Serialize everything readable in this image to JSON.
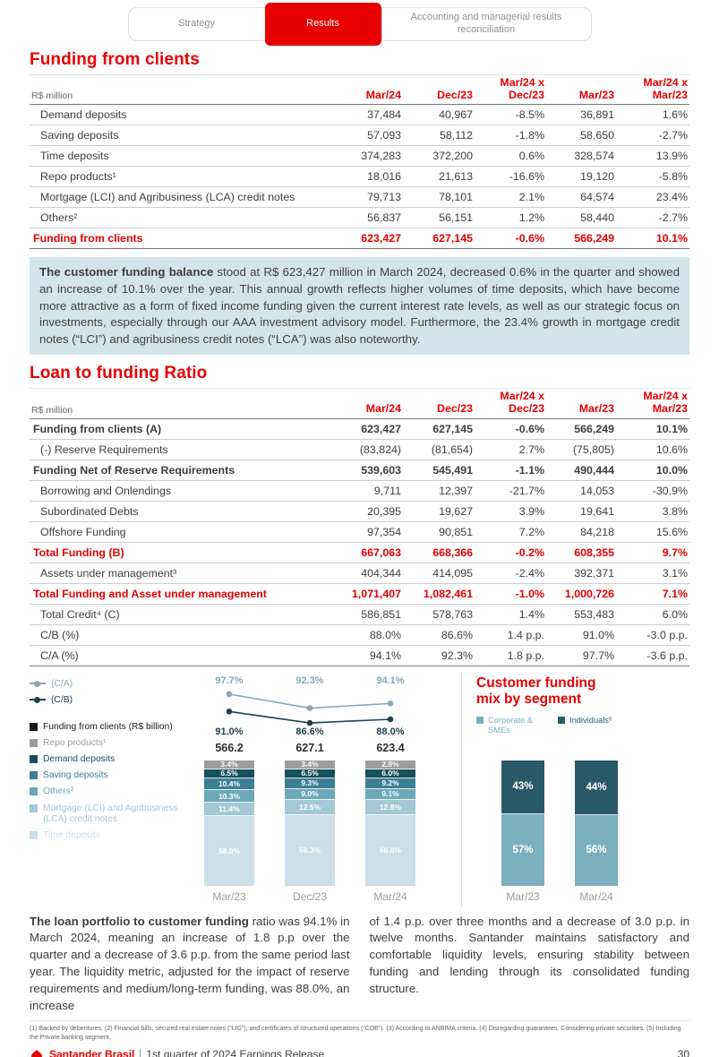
{
  "brand": {
    "red": "#e60000",
    "highlight_bg": "#d3e5ec"
  },
  "tabs": [
    {
      "label": "Strategy",
      "active": false
    },
    {
      "label": "Results",
      "active": true
    },
    {
      "label": "Accounting and managerial results reconciliation",
      "active": false
    }
  ],
  "funding_table": {
    "title": "Funding from clients",
    "unit": "R$ million",
    "headers": [
      "Mar/24",
      "Dec/23",
      "Mar/24 x Dec/23",
      "Mar/23",
      "Mar/24 x Mar/23"
    ],
    "rows": [
      {
        "label": "Demand deposits",
        "values": [
          "37,484",
          "40,967",
          "-8.5%",
          "36,891",
          "1.6%"
        ],
        "style": "normal"
      },
      {
        "label": "Saving deposits",
        "values": [
          "57,093",
          "58,112",
          "-1.8%",
          "58,650",
          "-2.7%"
        ],
        "style": "normal"
      },
      {
        "label": "Time deposits",
        "values": [
          "374,283",
          "372,200",
          "0.6%",
          "328,574",
          "13.9%"
        ],
        "style": "normal"
      },
      {
        "label": "Repo products¹",
        "values": [
          "18,016",
          "21,613",
          "-16.6%",
          "19,120",
          "-5.8%"
        ],
        "style": "normal"
      },
      {
        "label": "Mortgage (LCI) and Agribusiness (LCA) credit notes",
        "values": [
          "79,713",
          "78,101",
          "2.1%",
          "64,574",
          "23.4%"
        ],
        "style": "normal"
      },
      {
        "label": "Others²",
        "values": [
          "56,837",
          "56,151",
          "1.2%",
          "58,440",
          "-2.7%"
        ],
        "style": "normal"
      },
      {
        "label": "Funding from clients",
        "values": [
          "623,427",
          "627,145",
          "-0.6%",
          "566,249",
          "10.1%"
        ],
        "style": "total-red"
      }
    ]
  },
  "highlight": {
    "lead": "The customer funding balance",
    "text": " stood at R$ 623,427 million in March 2024, decreased 0.6% in the quarter and showed an increase of 10.1% over the year. This annual growth reflects higher volumes of time deposits, which have become more attractive as a form of fixed income funding given the current interest rate levels, as well as our strategic focus on investments, especially through our AAA investment advisory model. Furthermore, the 23.4% growth in mortgage credit notes (“LCI”) and agribusiness credit notes (“LCA”) was also noteworthy."
  },
  "ratio_table": {
    "title": "Loan to funding Ratio",
    "unit": "R$ million",
    "headers": [
      "Mar/24",
      "Dec/23",
      "Mar/24 x Dec/23",
      "Mar/23",
      "Mar/24 x Mar/23"
    ],
    "rows": [
      {
        "label": "Funding from clients (A)",
        "values": [
          "623,427",
          "627,145",
          "-0.6%",
          "566,249",
          "10.1%"
        ],
        "style": "bold"
      },
      {
        "label": "(-) Reserve Requirements",
        "values": [
          "(83,824)",
          "(81,654)",
          "2.7%",
          "(75,805)",
          "10.6%"
        ],
        "style": "normal"
      },
      {
        "label": "Funding Net of Reserve Requirements",
        "values": [
          "539,603",
          "545,491",
          "-1.1%",
          "490,444",
          "10.0%"
        ],
        "style": "bold"
      },
      {
        "label": "Borrowing and Onlendings",
        "values": [
          "9,711",
          "12,397",
          "-21.7%",
          "14,053",
          "-30.9%"
        ],
        "style": "normal"
      },
      {
        "label": "Subordinated Debts",
        "values": [
          "20,395",
          "19,627",
          "3.9%",
          "19,641",
          "3.8%"
        ],
        "style": "normal"
      },
      {
        "label": "Offshore Funding",
        "values": [
          "97,354",
          "90,851",
          "7.2%",
          "84,218",
          "15.6%"
        ],
        "style": "normal"
      },
      {
        "label": "Total Funding (B)",
        "values": [
          "667,063",
          "668,366",
          "-0.2%",
          "608,355",
          "9.7%"
        ],
        "style": "total-red"
      },
      {
        "label": "Assets under management³",
        "values": [
          "404,344",
          "414,095",
          "-2.4%",
          "392,371",
          "3.1%"
        ],
        "style": "normal"
      },
      {
        "label": "Total Funding and Asset under management",
        "values": [
          "1,071,407",
          "1,082,461",
          "-1.0%",
          "1,000,726",
          "7.1%"
        ],
        "style": "total-red"
      },
      {
        "label": "Total Credit⁴ (C)",
        "values": [
          "586,851",
          "578,763",
          "1.4%",
          "553,483",
          "6.0%"
        ],
        "style": "normal"
      },
      {
        "label": "C/B (%)",
        "values": [
          "88.0%",
          "86.6%",
          "1.4 p.p.",
          "91.0%",
          "-3.0 p.p."
        ],
        "style": "normal"
      },
      {
        "label": "C/A (%)",
        "values": [
          "94.1%",
          "92.3%",
          "1.8 p.p.",
          "97.7%",
          "-3.6 p.p."
        ],
        "style": "normal"
      }
    ]
  },
  "chart_legend": [
    {
      "label": "(C/A)",
      "color": "#8aa7b4",
      "type": "line"
    },
    {
      "label": "(C/B)",
      "color": "#1f4051",
      "type": "line"
    },
    {
      "label": "Funding from clients (R$ billion)",
      "color": "#1a1a1a",
      "type": "square"
    },
    {
      "label": "Repo products¹",
      "color": "#9c9c9b",
      "type": "square"
    },
    {
      "label": "Demand deposits",
      "color": "#15505c",
      "type": "square"
    },
    {
      "label": "Saving deposits",
      "color": "#3d7f95",
      "type": "square"
    },
    {
      "label": "Others²",
      "color": "#6ea7ba",
      "type": "square"
    },
    {
      "label": "Mortgage (LCI) and Agribusiness (LCA) credit notes",
      "color": "#a3c8d6",
      "type": "square"
    },
    {
      "label": "Time deposits",
      "color": "#cbdfe8",
      "type": "square"
    }
  ],
  "chart_data": [
    {
      "id": "funding_mix_chart",
      "type": "bar",
      "stacked": true,
      "categories": [
        "Mar/23",
        "Dec/23",
        "Mar/24"
      ],
      "totals_label": "Funding from clients (R$ billion)",
      "totals": [
        "566.2",
        "627.1",
        "623.4"
      ],
      "lines": [
        {
          "name": "(C/A)",
          "color": "#8aa7b4",
          "values": [
            97.7,
            92.3,
            94.1
          ],
          "labels": [
            "97.7%",
            "92.3%",
            "94.1%"
          ]
        },
        {
          "name": "(C/B)",
          "color": "#1f4051",
          "values": [
            91.0,
            86.6,
            88.0
          ],
          "labels": [
            "91.0%",
            "86.6%",
            "88.0%"
          ]
        }
      ],
      "series": [
        {
          "name": "Repo products¹",
          "color": "#9c9c9b",
          "values": [
            3.4,
            3.4,
            2.9
          ],
          "labels": [
            "3.4%",
            "3.4%",
            "2.9%"
          ]
        },
        {
          "name": "Demand deposits",
          "color": "#15505c",
          "values": [
            6.5,
            6.5,
            6.0
          ],
          "labels": [
            "6.5%",
            "6.5%",
            "6.0%"
          ]
        },
        {
          "name": "Saving deposits",
          "color": "#3d7f95",
          "values": [
            10.4,
            9.3,
            9.2
          ],
          "labels": [
            "10.4%",
            "9.3%",
            "9.2%"
          ]
        },
        {
          "name": "Others²",
          "color": "#6ea7ba",
          "values": [
            10.3,
            9.0,
            9.1
          ],
          "labels": [
            "10.3%",
            "9.0%",
            "9.1%"
          ]
        },
        {
          "name": "Mortgage (LCI) and Agribusiness (LCA) credit notes",
          "color": "#a3c8d6",
          "values": [
            11.4,
            12.5,
            12.8
          ],
          "labels": [
            "11.4%",
            "12.5%",
            "12.8%"
          ]
        },
        {
          "name": "Time deposits",
          "color": "#cbdfe8",
          "values": [
            58.0,
            59.3,
            60.0
          ],
          "labels": [
            "58.0%",
            "59.3%",
            "60.0%"
          ]
        }
      ],
      "ylim": [
        0,
        100
      ]
    },
    {
      "id": "segment_mix_chart",
      "type": "bar",
      "stacked": true,
      "title": "Customer funding mix by segment",
      "categories": [
        "Mar/23",
        "Mar/24"
      ],
      "legend": [
        {
          "label": "Corporate & SMEs",
          "color": "#7cb0bf"
        },
        {
          "label": "Individuals⁵",
          "color": "#2a5a68"
        }
      ],
      "series": [
        {
          "name": "Individuals⁵",
          "color": "#2a5a68",
          "values": [
            43,
            44
          ],
          "labels": [
            "43%",
            "44%"
          ]
        },
        {
          "name": "Corporate & SMEs",
          "color": "#7cb0bf",
          "values": [
            57,
            56
          ],
          "labels": [
            "57%",
            "56%"
          ]
        }
      ],
      "ylim": [
        0,
        100
      ]
    }
  ],
  "bottom_text": {
    "left_lead": "The loan portfolio to customer funding",
    "left_rest": " ratio was 94.1% in March 2024, meaning an increase of 1.8 p.p over the quarter and a decrease of 3.6 p.p. from the same period last year. The liquidity metric, adjusted for the impact of reserve requirements and medium/long-term funding, was 88.0%, an increase",
    "right": "of 1.4 p.p. over three months and a decrease of 3.0 p.p. in twelve months. Santander maintains satisfactory and comfortable liquidity levels, ensuring stability between funding and lending through its consolidated funding structure."
  },
  "footnotes": "(1) Backed by debentures. (2) Financial bills, secured real estate notes (“LIG”), and certificates of structured operations (“COE”). (3) According to ANBIMA criteria. (4) Disregarding guarantees. Considering private securities. (5) Including the Private banking segment.",
  "footer": {
    "brand": "Santander Brasil",
    "subtitle": "1st quarter of 2024 Earnings Release",
    "page": "30"
  }
}
